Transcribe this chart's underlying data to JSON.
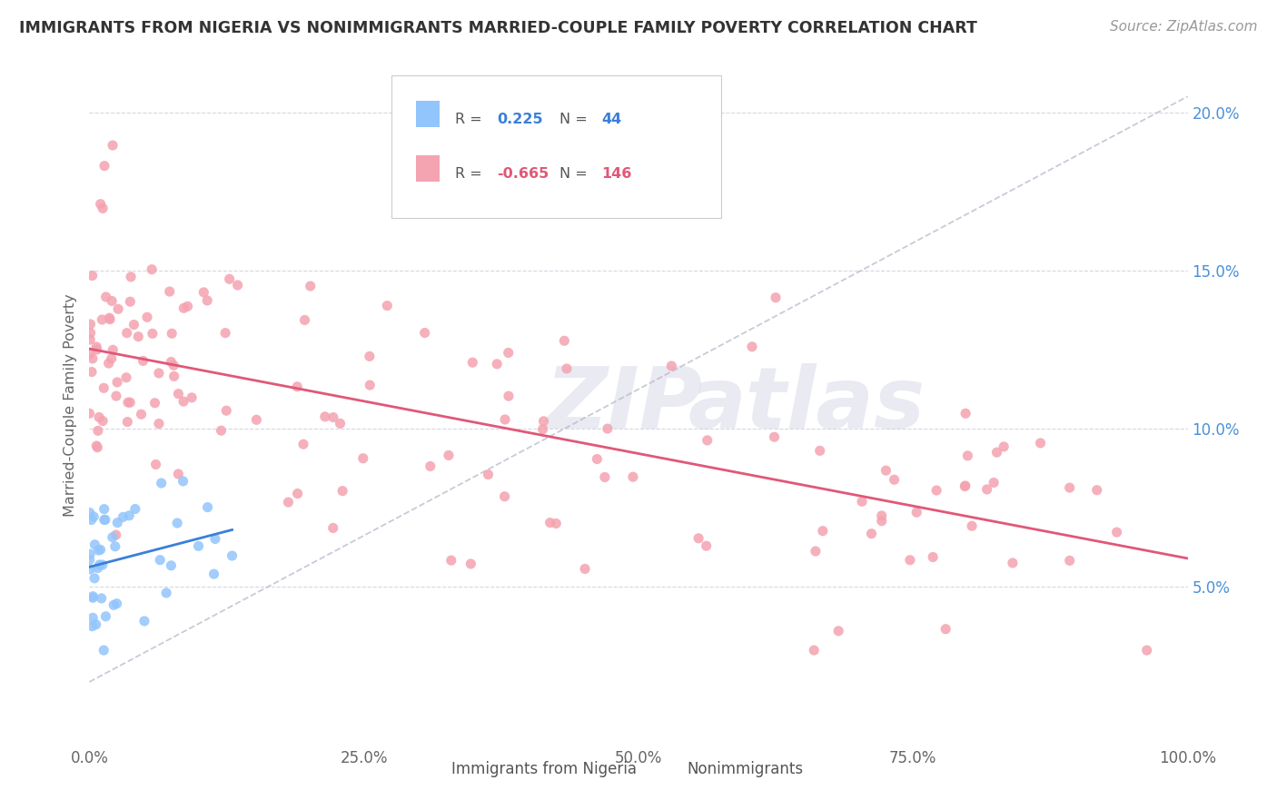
{
  "title": "IMMIGRANTS FROM NIGERIA VS NONIMMIGRANTS MARRIED-COUPLE FAMILY POVERTY CORRELATION CHART",
  "source": "Source: ZipAtlas.com",
  "ylabel": "Married-Couple Family Poverty",
  "xlim": [
    0.0,
    1.0
  ],
  "ylim": [
    0.0,
    0.215
  ],
  "yticks": [
    0.05,
    0.1,
    0.15,
    0.2
  ],
  "ytick_labels": [
    "5.0%",
    "10.0%",
    "15.0%",
    "20.0%"
  ],
  "xticks": [
    0.0,
    0.25,
    0.5,
    0.75,
    1.0
  ],
  "xtick_labels": [
    "0.0%",
    "25.0%",
    "50.0%",
    "75.0%",
    "100.0%"
  ],
  "legend_r_blue": "0.225",
  "legend_n_blue": "44",
  "legend_r_pink": "-0.665",
  "legend_n_pink": "146",
  "blue_color": "#92C5FC",
  "pink_color": "#F4A3B0",
  "blue_line_color": "#3a80d9",
  "pink_line_color": "#e05878",
  "dashed_line_color": "#b8b8cc",
  "grid_color": "#ccccdd",
  "title_color": "#333333",
  "source_color": "#999999",
  "label_color": "#666666",
  "tick_color": "#4a90d9",
  "bottom_label_color": "#555555"
}
